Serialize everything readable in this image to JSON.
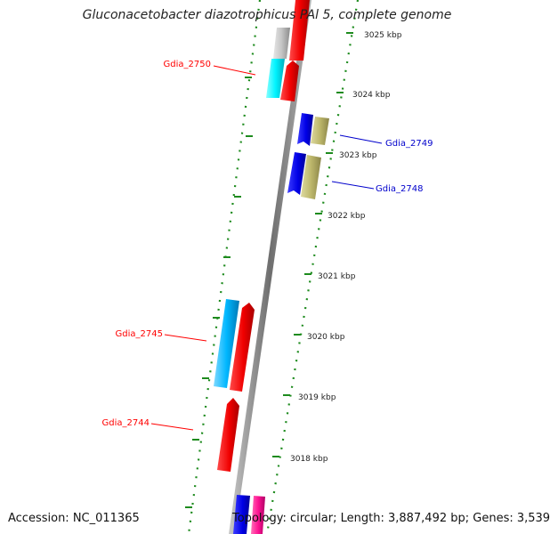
{
  "title": "Gluconacetobacter diazotrophicus PAl 5, complete genome",
  "footer": {
    "accession": "Accession: NC_011365",
    "topology": "Topology: circular; Length: 3,887,492 bp; Genes: 3,539"
  },
  "ticks": [
    {
      "label": "3025 kbp",
      "kbp": 3025
    },
    {
      "label": "3024 kbp",
      "kbp": 3024
    },
    {
      "label": "3023 kbp",
      "kbp": 3023
    },
    {
      "label": "3022 kbp",
      "kbp": 3022
    },
    {
      "label": "3021 kbp",
      "kbp": 3021
    },
    {
      "label": "3020 kbp",
      "kbp": 3020
    },
    {
      "label": "3019 kbp",
      "kbp": 3019
    },
    {
      "label": "3018 kbp",
      "kbp": 3018
    }
  ],
  "gene_labels": {
    "gdia_2750": "Gdia_2750",
    "gdia_2749": "Gdia_2749",
    "gdia_2748": "Gdia_2748",
    "gdia_2745": "Gdia_2745",
    "gdia_2744": "Gdia_2744"
  },
  "colors": {
    "forward_gene": "#ff0000",
    "reverse_gene": "#0000ee",
    "cyan_feature": "#00ffff",
    "sky_feature": "#00bfff",
    "khaki_feature": "#bdb76b",
    "gray_feature": "#c0c0c0",
    "pink_feature": "#ff1493",
    "backbone": "#808080",
    "tick_dots": "#1e8b1e",
    "label_red": "#ff0000",
    "label_blue": "#0000cc"
  }
}
